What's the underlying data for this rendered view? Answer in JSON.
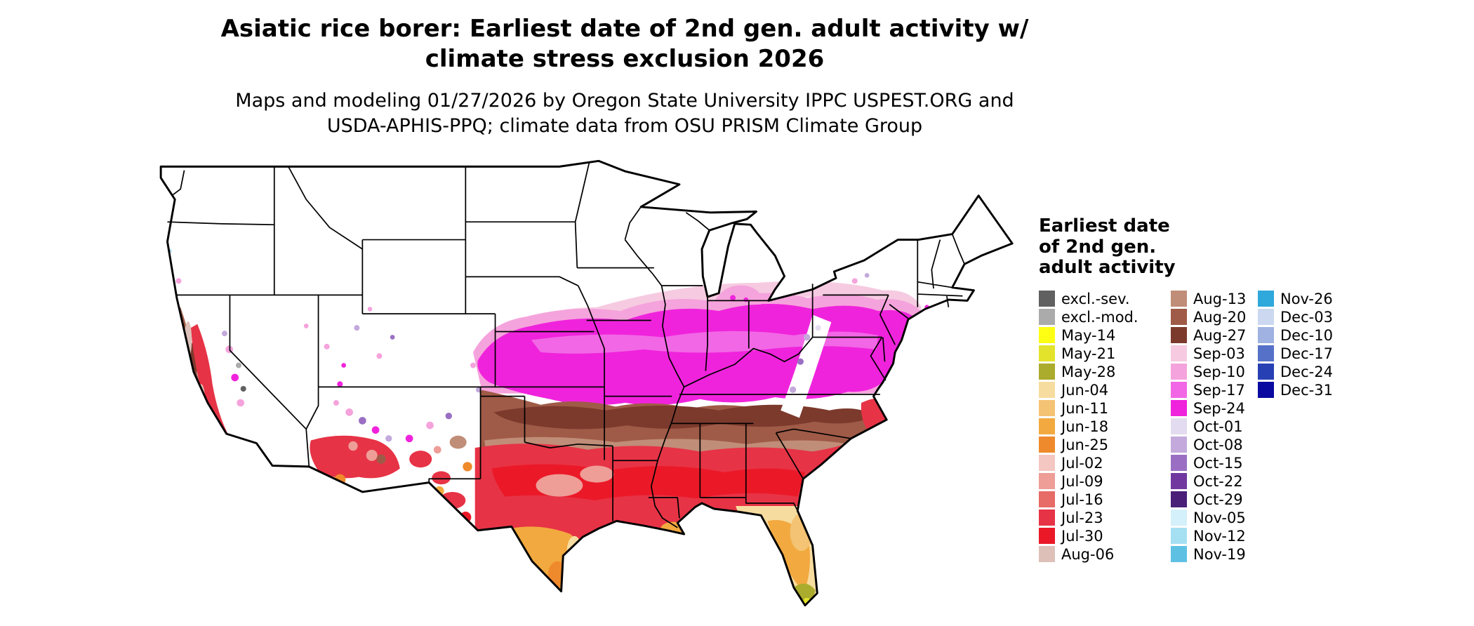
{
  "page": {
    "title_line1": "Asiatic rice borer: Earliest date of 2nd gen. adult activity w/",
    "title_line2": "climate stress exclusion 2026",
    "subtitle_line1": "Maps and modeling 01/27/2026 by Oregon State University IPPC USPEST.ORG and",
    "subtitle_line2": "USDA-APHIS-PPQ; climate data from OSU PRISM Climate Group"
  },
  "legend": {
    "title_line1": "Earliest date",
    "title_line2": "of 2nd gen.",
    "title_line3": "adult activity",
    "columns": [
      {
        "items": [
          {
            "label": "excl.-sev.",
            "color": "#606060"
          },
          {
            "label": "excl.-mod.",
            "color": "#ABABAB"
          },
          {
            "label": "May-14",
            "color": "#FFFF14"
          },
          {
            "label": "May-21",
            "color": "#E3E32C"
          },
          {
            "label": "May-28",
            "color": "#ABAB2D"
          },
          {
            "label": "Jun-04",
            "color": "#F7DCA0"
          },
          {
            "label": "Jun-11",
            "color": "#F4C373"
          },
          {
            "label": "Jun-18",
            "color": "#F2A93F"
          },
          {
            "label": "Jun-25",
            "color": "#EF8A2C"
          },
          {
            "label": "Jul-02",
            "color": "#F4C7C3"
          },
          {
            "label": "Jul-09",
            "color": "#EE9D97"
          },
          {
            "label": "Jul-16",
            "color": "#E76B66"
          },
          {
            "label": "Jul-23",
            "color": "#E73346"
          },
          {
            "label": "Jul-30",
            "color": "#EB1928"
          },
          {
            "label": "Aug-06",
            "color": "#DDC1B9"
          }
        ]
      },
      {
        "items": [
          {
            "label": "Aug-13",
            "color": "#C08D78"
          },
          {
            "label": "Aug-20",
            "color": "#9F5B47"
          },
          {
            "label": "Aug-27",
            "color": "#7C3A2D"
          },
          {
            "label": "Sep-03",
            "color": "#F6CBE1"
          },
          {
            "label": "Sep-10",
            "color": "#F5A3DC"
          },
          {
            "label": "Sep-17",
            "color": "#F267E5"
          },
          {
            "label": "Sep-24",
            "color": "#F023DC"
          },
          {
            "label": "Oct-01",
            "color": "#E3DBEF"
          },
          {
            "label": "Oct-08",
            "color": "#C3A9DC"
          },
          {
            "label": "Oct-15",
            "color": "#9A6FC3"
          },
          {
            "label": "Oct-22",
            "color": "#71399F"
          },
          {
            "label": "Oct-29",
            "color": "#491F78"
          },
          {
            "label": "Nov-05",
            "color": "#D4F0FA"
          },
          {
            "label": "Nov-12",
            "color": "#A5DFF2"
          },
          {
            "label": "Nov-19",
            "color": "#5EC1E4"
          }
        ]
      },
      {
        "items": [
          {
            "label": "Nov-26",
            "color": "#2FA8DC"
          },
          {
            "label": "Dec-03",
            "color": "#CBD8F0"
          },
          {
            "label": "Dec-10",
            "color": "#9FB2E1"
          },
          {
            "label": "Dec-17",
            "color": "#5672C8"
          },
          {
            "label": "Dec-24",
            "color": "#2741B4"
          },
          {
            "label": "Dec-31",
            "color": "#0A0AA0"
          }
        ]
      }
    ]
  }
}
